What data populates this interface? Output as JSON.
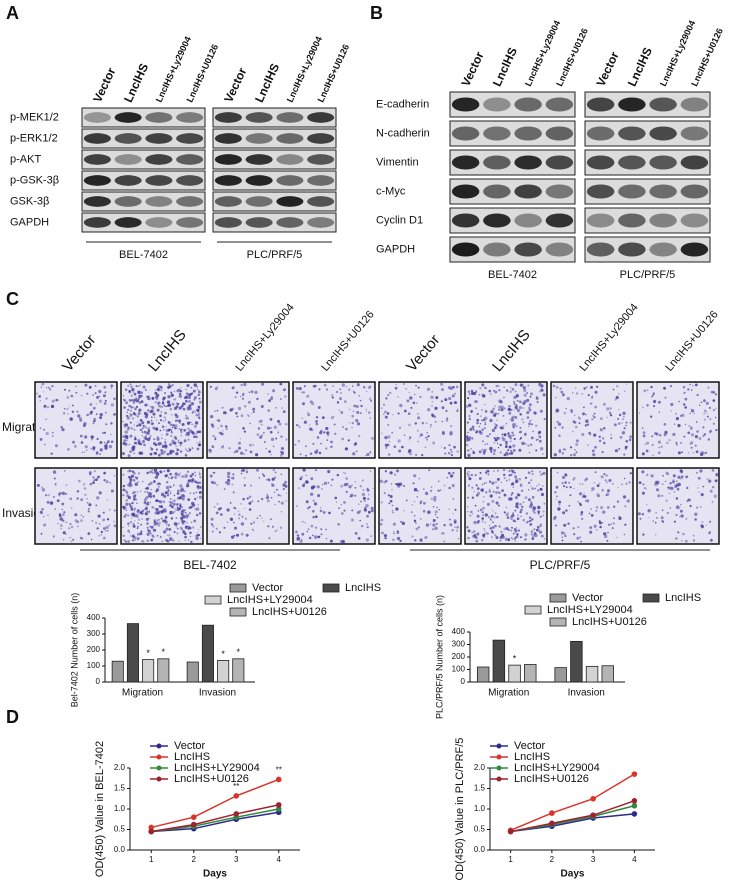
{
  "panel_labels": [
    "A",
    "B",
    "C",
    "D"
  ],
  "blot_a": {
    "lanes": [
      "Vector",
      "LncIHS",
      "LncIHS+Ly29004",
      "LncIHS+U0126"
    ],
    "rows": [
      "p-MEK1/2",
      "p-ERK1/2",
      "p-AKT",
      "p-GSK-3β",
      "GSK-3β",
      "GAPDH"
    ],
    "groups": [
      "BEL-7402",
      "PLC/PRF/5"
    ]
  },
  "blot_b": {
    "lanes": [
      "Vector",
      "LncIHS",
      "LncIHS+Ly29004",
      "LncIHS+U0126"
    ],
    "rows": [
      "E-cadherin",
      "N-cadherin",
      "Vimentin",
      "c-Myc",
      "Cyclin D1",
      "GAPDH"
    ],
    "groups": [
      "BEL-7402",
      "PLC/PRF/5"
    ]
  },
  "transwell": {
    "lanes": [
      "Vector",
      "LncIHS",
      "LncIHS+Ly29004",
      "LncIHS+U0126"
    ],
    "rows": [
      "Migration",
      "Invasion"
    ],
    "groups": [
      "BEL-7402",
      "PLC/PRF/5"
    ]
  },
  "chart_data": [
    {
      "type": "bar",
      "y_label": "Bel-7402 Number of cells (n)",
      "categories": [
        "Migration",
        "Invasion"
      ],
      "series": [
        {
          "name": "Vector",
          "color": "#9a9a9a",
          "values": [
            130,
            125
          ]
        },
        {
          "name": "LncIHS",
          "color": "#4a4a4a",
          "values": [
            365,
            355
          ]
        },
        {
          "name": "LncIHS+LY29004",
          "color": "#d2d2d2",
          "values": [
            140,
            135
          ],
          "stars": [
            "*",
            "*"
          ]
        },
        {
          "name": "LncIHS+U0126",
          "color": "#b4b4b4",
          "values": [
            145,
            145
          ],
          "stars": [
            "*",
            "*"
          ]
        }
      ],
      "ylim": [
        0,
        400
      ],
      "yticks": [
        0,
        100,
        200,
        300,
        400
      ]
    },
    {
      "type": "bar",
      "y_label": "PLC/PRF/5 Number of cells (n)",
      "categories": [
        "Migration",
        "Invasion"
      ],
      "series": [
        {
          "name": "Vector",
          "color": "#9a9a9a",
          "values": [
            120,
            115
          ]
        },
        {
          "name": "LncIHS",
          "color": "#4a4a4a",
          "values": [
            335,
            325
          ]
        },
        {
          "name": "LncIHS+LY29004",
          "color": "#d2d2d2",
          "values": [
            135,
            125
          ],
          "stars": [
            "*",
            null
          ]
        },
        {
          "name": "LncIHS+U0126",
          "color": "#b4b4b4",
          "values": [
            140,
            130
          ]
        }
      ],
      "ylim": [
        0,
        400
      ],
      "yticks": [
        0,
        100,
        200,
        300,
        400
      ]
    },
    {
      "type": "line",
      "y_label": "OD(450) Value in BEL-7402",
      "x_label": "Days",
      "x": [
        1,
        2,
        3,
        4
      ],
      "series": [
        {
          "name": "Vector",
          "color": "#2b2b8f",
          "values": [
            0.45,
            0.52,
            0.75,
            0.92
          ]
        },
        {
          "name": "LncIHS",
          "color": "#d9342b",
          "values": [
            0.55,
            0.8,
            1.32,
            1.72
          ],
          "stars": [
            null,
            null,
            "**",
            "**"
          ]
        },
        {
          "name": "LncIHS+LY29004",
          "color": "#2e8b3e",
          "values": [
            0.45,
            0.58,
            0.8,
            1.0
          ]
        },
        {
          "name": "LncIHS+U0126",
          "color": "#a02030",
          "values": [
            0.45,
            0.62,
            0.88,
            1.1
          ]
        }
      ],
      "xlim": [
        0.5,
        4.5
      ],
      "xticks": [
        1,
        2,
        3,
        4
      ],
      "ylim": [
        0,
        2
      ],
      "yticks": [
        {
          "value": 0,
          "label": "0.0"
        },
        0.5,
        {
          "value": 1,
          "label": "1.0"
        },
        1.5,
        {
          "value": 2,
          "label": "2.0"
        }
      ]
    },
    {
      "type": "line",
      "y_label": "OD(450) Value in PLC/PRF/5",
      "x_label": "Days",
      "x": [
        1,
        2,
        3,
        4
      ],
      "series": [
        {
          "name": "Vector",
          "color": "#2b2b8f",
          "values": [
            0.45,
            0.58,
            0.78,
            0.88
          ]
        },
        {
          "name": "LncIHS",
          "color": "#d9342b",
          "values": [
            0.48,
            0.9,
            1.25,
            1.85
          ]
        },
        {
          "name": "LncIHS+LY29004",
          "color": "#2e8b3e",
          "values": [
            0.45,
            0.62,
            0.82,
            1.08
          ]
        },
        {
          "name": "LncIHS+U0126",
          "color": "#a02030",
          "values": [
            0.45,
            0.65,
            0.85,
            1.2
          ]
        }
      ],
      "xlim": [
        0.5,
        4.5
      ],
      "xticks": [
        1,
        2,
        3,
        4
      ],
      "ylim": [
        0,
        2
      ],
      "yticks": [
        {
          "value": 0,
          "label": "0.0"
        },
        0.5,
        {
          "value": 1,
          "label": "1.0"
        },
        1.5,
        {
          "value": 2,
          "label": "2.0"
        }
      ]
    }
  ]
}
